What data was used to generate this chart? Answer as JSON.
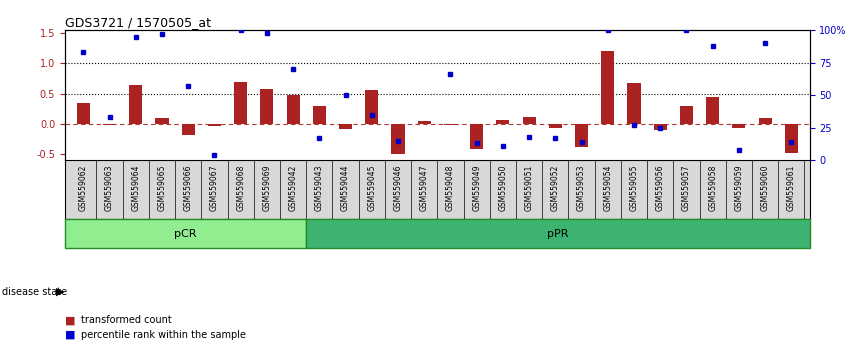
{
  "title": "GDS3721 / 1570505_at",
  "samples": [
    "GSM559062",
    "GSM559063",
    "GSM559064",
    "GSM559065",
    "GSM559066",
    "GSM559067",
    "GSM559068",
    "GSM559069",
    "GSM559042",
    "GSM559043",
    "GSM559044",
    "GSM559045",
    "GSM559046",
    "GSM559047",
    "GSM559048",
    "GSM559049",
    "GSM559050",
    "GSM559051",
    "GSM559052",
    "GSM559053",
    "GSM559054",
    "GSM559055",
    "GSM559056",
    "GSM559057",
    "GSM559058",
    "GSM559059",
    "GSM559060",
    "GSM559061"
  ],
  "bar_values": [
    0.34,
    -0.02,
    0.65,
    0.1,
    -0.18,
    -0.04,
    0.7,
    0.58,
    0.47,
    0.3,
    -0.08,
    0.56,
    -0.5,
    0.05,
    -0.02,
    -0.42,
    0.07,
    0.12,
    -0.07,
    -0.38,
    1.2,
    0.68,
    -0.1,
    0.3,
    0.44,
    -0.07,
    0.1,
    -0.48
  ],
  "dot_values_pct": [
    83,
    33,
    95,
    97,
    57,
    4,
    100,
    98,
    70,
    17,
    50,
    35,
    15,
    null,
    66,
    13,
    11,
    18,
    17,
    14,
    100,
    27,
    25,
    100,
    88,
    8,
    90,
    14
  ],
  "pCR_count": 9,
  "pPR_count": 19,
  "bar_color": "#aa2222",
  "dot_color": "#0000cc",
  "ylim": [
    -0.6,
    1.55
  ],
  "right_ylim": [
    0,
    100
  ],
  "left_yticks": [
    -0.5,
    0.0,
    0.5,
    1.0,
    1.5
  ],
  "right_yticks": [
    0,
    25,
    50,
    75,
    100
  ],
  "right_yticklabels": [
    "0",
    "25",
    "50",
    "75",
    "100%"
  ],
  "dotted_lines": [
    0.5,
    1.0
  ],
  "pCR_color": "#90ee90",
  "pPR_color": "#3cb371",
  "pCR_edge": "#228B22",
  "pPR_edge": "#228B22",
  "disease_state_label": "disease state",
  "legend_bar": "transformed count",
  "legend_dot": "percentile rank within the sample",
  "bg_color": "#d8d8d8"
}
